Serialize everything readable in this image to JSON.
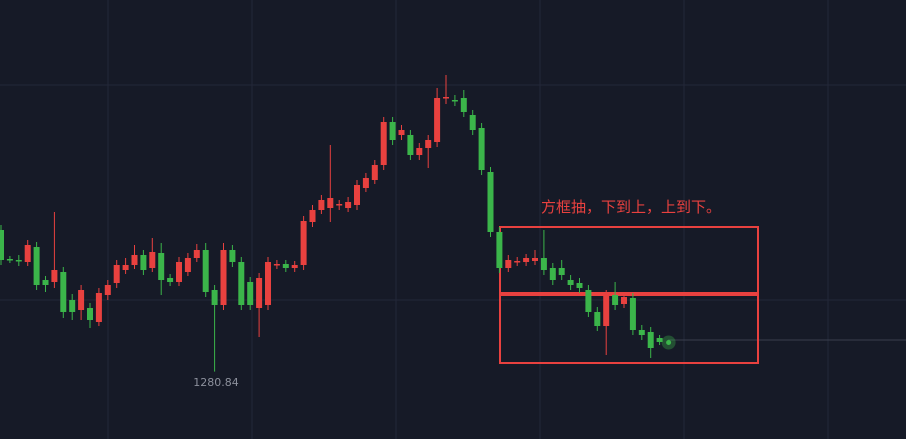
{
  "chart_data": {
    "type": "candlestick",
    "annotation": "方框抽，下到上，上到下。",
    "low_label": 1280.84,
    "up_color": "#e8413f",
    "down_color": "#3bb54a",
    "ylim": [
      1274.1,
      1318.0
    ],
    "open": [
      1295.0,
      1292.1,
      1292.0,
      1291.8,
      1293.3,
      1290.0,
      1289.8,
      1290.8,
      1288.0,
      1287.0,
      1287.2,
      1285.8,
      1288.5,
      1289.7,
      1291.0,
      1291.5,
      1292.5,
      1291.2,
      1292.7,
      1290.2,
      1289.8,
      1290.8,
      1292.2,
      1293.0,
      1289.0,
      1287.5,
      1293.0,
      1291.8,
      1289.8,
      1287.2,
      1287.5,
      1291.5,
      1291.6,
      1291.2,
      1291.5,
      1295.8,
      1297.0,
      1297.2,
      1297.5,
      1297.2,
      1297.5,
      1299.2,
      1300.0,
      1301.5,
      1305.8,
      1304.5,
      1304.5,
      1302.5,
      1303.2,
      1303.8,
      1308.2,
      1308.0,
      1308.2,
      1306.5,
      1305.2,
      1300.8,
      1294.8,
      1291.2,
      1291.8,
      1291.8,
      1291.9,
      1292.2,
      1291.2,
      1291.2,
      1290.0,
      1289.7,
      1289.0,
      1286.8,
      1285.4,
      1288.5,
      1287.6,
      1288.2,
      1285.0,
      1284.8,
      1284.2
    ],
    "high": [
      1295.5,
      1292.4,
      1292.5,
      1294.0,
      1293.8,
      1290.4,
      1296.8,
      1291.3,
      1288.6,
      1289.5,
      1287.7,
      1289.2,
      1290.0,
      1292.0,
      1292.2,
      1293.5,
      1293.0,
      1294.2,
      1293.7,
      1290.6,
      1292.3,
      1292.7,
      1293.6,
      1293.7,
      1289.5,
      1293.7,
      1293.5,
      1292.3,
      1290.3,
      1290.7,
      1292.3,
      1292.0,
      1292.0,
      1291.9,
      1296.4,
      1297.5,
      1298.5,
      1303.5,
      1298.0,
      1298.3,
      1300.0,
      1300.7,
      1302.0,
      1306.3,
      1306.3,
      1305.5,
      1305.0,
      1303.7,
      1304.5,
      1309.2,
      1310.5,
      1308.5,
      1309.0,
      1307.0,
      1305.7,
      1301.3,
      1295.3,
      1292.5,
      1292.3,
      1292.6,
      1293.0,
      1295.0,
      1291.7,
      1292.0,
      1290.5,
      1290.2,
      1289.5,
      1287.3,
      1289.0,
      1289.8,
      1288.8,
      1288.7,
      1285.5,
      1285.3,
      1284.5
    ],
    "low": [
      1291.5,
      1291.7,
      1291.4,
      1291.4,
      1289.0,
      1288.8,
      1289.2,
      1286.2,
      1286.0,
      1286.0,
      1285.2,
      1285.4,
      1288.0,
      1289.2,
      1290.6,
      1291.1,
      1290.5,
      1290.8,
      1288.5,
      1289.4,
      1289.4,
      1290.4,
      1291.8,
      1288.3,
      1280.84,
      1287.0,
      1291.3,
      1287.0,
      1287.0,
      1284.3,
      1287.0,
      1291.1,
      1290.8,
      1290.8,
      1291.0,
      1295.3,
      1296.6,
      1295.8,
      1297.0,
      1296.8,
      1297.0,
      1298.8,
      1299.6,
      1301.0,
      1303.5,
      1304.0,
      1302.0,
      1302.0,
      1301.2,
      1303.3,
      1307.6,
      1307.4,
      1306.3,
      1304.5,
      1300.5,
      1294.3,
      1290.7,
      1290.8,
      1291.4,
      1291.4,
      1291.5,
      1290.5,
      1289.5,
      1290.0,
      1289.0,
      1288.7,
      1286.3,
      1284.9,
      1282.5,
      1287.0,
      1287.2,
      1284.5,
      1284.0,
      1282.2,
      1283.5
    ],
    "close": [
      1292.0,
      1292.0,
      1291.9,
      1293.5,
      1289.5,
      1289.5,
      1291.0,
      1286.8,
      1286.8,
      1289.0,
      1286.0,
      1288.7,
      1289.5,
      1291.5,
      1291.5,
      1292.5,
      1291.0,
      1292.8,
      1290.0,
      1289.8,
      1291.8,
      1292.2,
      1293.0,
      1288.8,
      1287.5,
      1293.0,
      1291.8,
      1287.5,
      1287.5,
      1290.2,
      1291.8,
      1291.6,
      1291.2,
      1291.5,
      1295.9,
      1297.0,
      1298.0,
      1298.2,
      1297.6,
      1297.8,
      1299.5,
      1300.2,
      1301.5,
      1305.8,
      1304.0,
      1305.0,
      1302.5,
      1303.2,
      1304.0,
      1308.2,
      1308.3,
      1307.9,
      1306.8,
      1305.0,
      1301.0,
      1294.8,
      1291.2,
      1292.0,
      1291.9,
      1292.2,
      1292.2,
      1291.0,
      1290.0,
      1290.5,
      1289.5,
      1289.2,
      1286.8,
      1285.4,
      1288.5,
      1287.5,
      1288.3,
      1285.0,
      1284.5,
      1283.2,
      1283.8
    ]
  }
}
